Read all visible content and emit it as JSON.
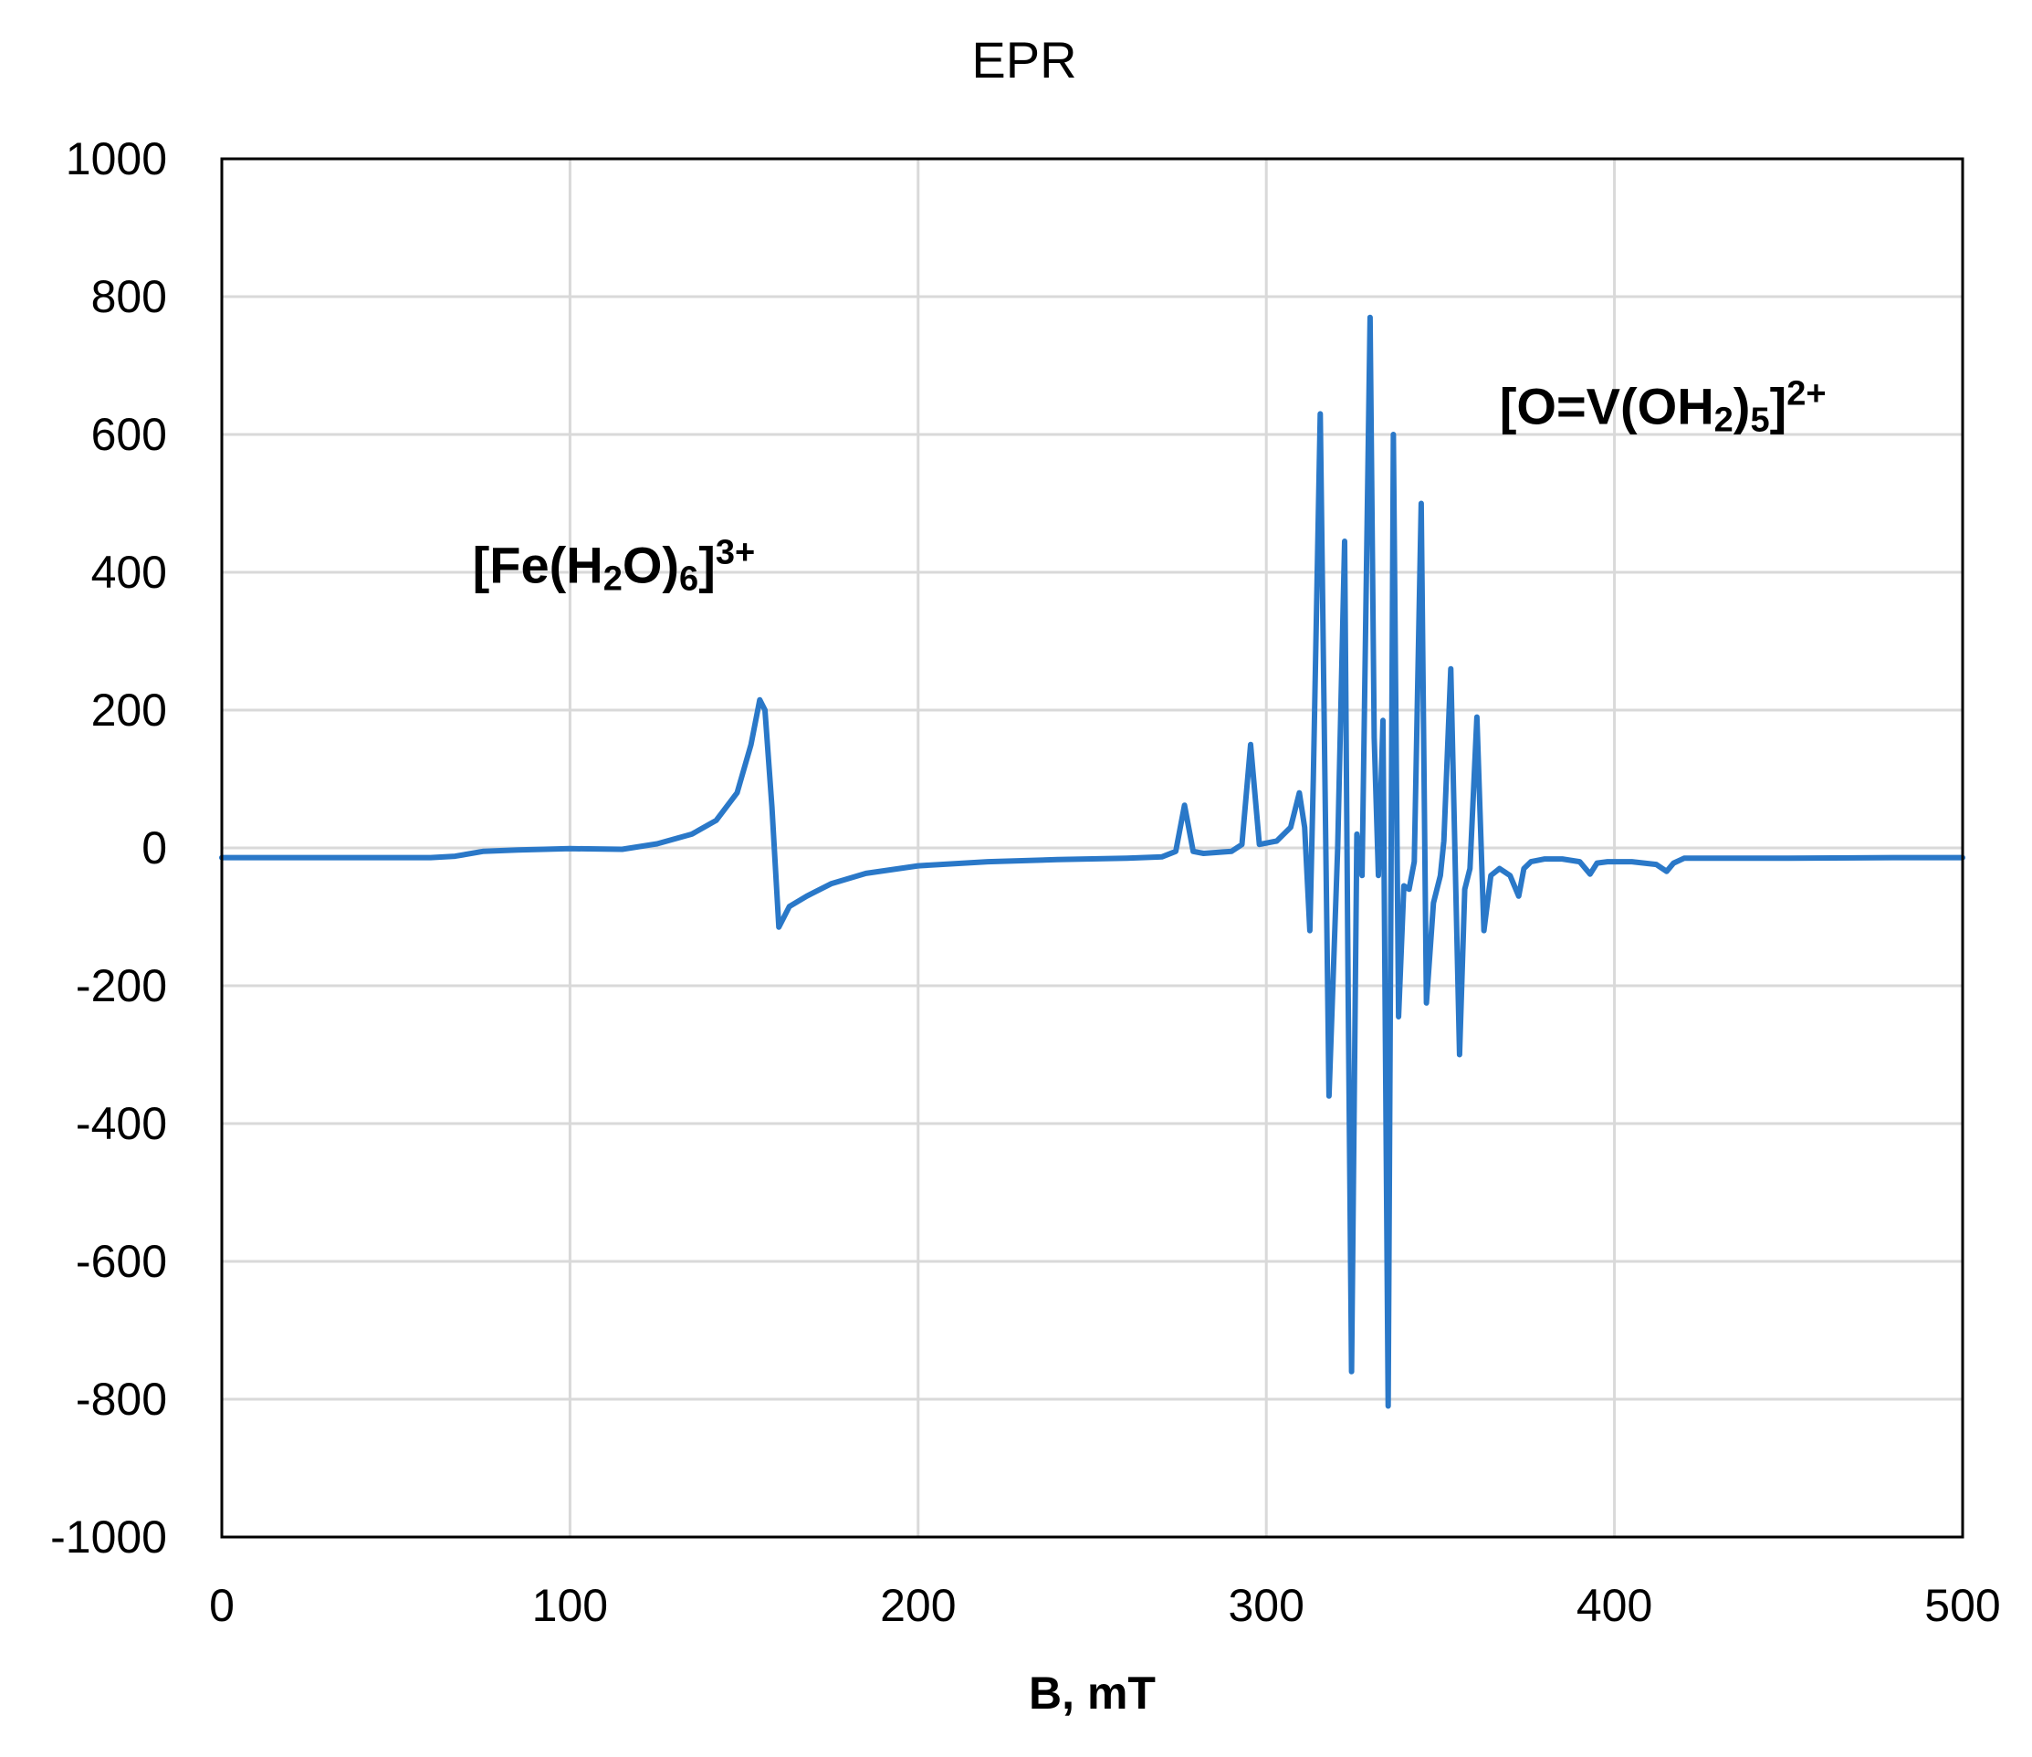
{
  "chart_data": {
    "type": "line",
    "title": "EPR",
    "xlabel": "B, mT",
    "ylabel": "",
    "xlim": [
      0,
      500
    ],
    "ylim": [
      -1000,
      1000
    ],
    "xticks": [
      "0",
      "100",
      "200",
      "300",
      "400",
      "500"
    ],
    "yticks": [
      "1000",
      "800",
      "600",
      "400",
      "200",
      "0",
      "-200",
      "-400",
      "-600",
      "-800",
      "-1000"
    ],
    "grid": true,
    "line_color": "#2a78c8",
    "series": [
      {
        "x": [
          0,
          60,
          67,
          75,
          85,
          100,
          115,
          125,
          135,
          142,
          148,
          152,
          154.5,
          156,
          158,
          160,
          163,
          168,
          175,
          185,
          200,
          220,
          240,
          260,
          270,
          274,
          276.5,
          279,
          282,
          290,
          293,
          295.5,
          298,
          303,
          307,
          309.5,
          311,
          312.5,
          313.5,
          315.5,
          318,
          320.5,
          322.5,
          323.5,
          324.5,
          326,
          327.5,
          329.8,
          331,
          332.2,
          333.5,
          335,
          336.5,
          338,
          339.5,
          341,
          342.5,
          344.5,
          346,
          348,
          350,
          351,
          353,
          355.5,
          357,
          358.5,
          360.5,
          362.5,
          364.5,
          367,
          370,
          372.5,
          374,
          376,
          380,
          385,
          390,
          393,
          395,
          398,
          405,
          412,
          415,
          417,
          420,
          430,
          450,
          480,
          500
        ],
        "y": [
          -14,
          -14,
          -12,
          -5,
          -3,
          -1,
          -2,
          6,
          20,
          40,
          80,
          150,
          215,
          200,
          60,
          -115,
          -85,
          -70,
          -52,
          -37,
          -26,
          -20,
          -17,
          -15,
          -13,
          -5,
          62,
          -5,
          -8,
          -5,
          5,
          150,
          5,
          10,
          30,
          80,
          30,
          -120,
          100,
          630,
          -360,
          0,
          445,
          -200,
          -760,
          20,
          -40,
          770,
          160,
          -40,
          185,
          -810,
          600,
          -245,
          -55,
          -60,
          -20,
          500,
          -225,
          -80,
          -40,
          10,
          260,
          -300,
          -60,
          -30,
          190,
          -120,
          -40,
          -30,
          -40,
          -70,
          -30,
          -20,
          -16,
          -16,
          -20,
          -38,
          -22,
          -20,
          -20,
          -24,
          -34,
          -22,
          -15,
          -15,
          -15,
          -14,
          -14
        ]
      }
    ],
    "annotations": [
      {
        "parts": [
          [
            "[Fe(H",
            "n"
          ],
          [
            "2",
            "sub"
          ],
          [
            "O)",
            "n"
          ],
          [
            "6",
            "sub"
          ],
          [
            "]",
            "n"
          ],
          [
            "3+",
            "sup"
          ]
        ],
        "x": 72,
        "y": 385
      },
      {
        "parts": [
          [
            "[O=V(OH",
            "n"
          ],
          [
            "2",
            "sub"
          ],
          [
            ")",
            "n"
          ],
          [
            "5",
            "sub"
          ],
          [
            "]",
            "n"
          ],
          [
            "2+",
            "sup"
          ]
        ],
        "x": 367,
        "y": 615
      }
    ]
  }
}
